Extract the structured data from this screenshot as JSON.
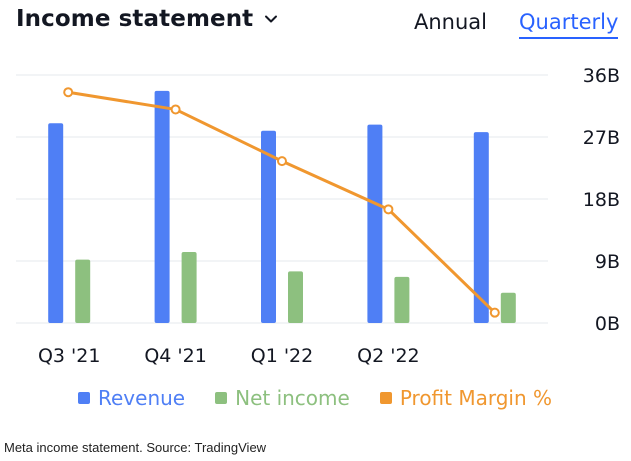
{
  "header": {
    "title": "Income statement",
    "tabs": {
      "annual": "Annual",
      "quarterly": "Quarterly"
    },
    "selected_tab": "Quarterly"
  },
  "colors": {
    "revenue": "#4f7ff5",
    "net_income": "#8dc07f",
    "profit_margin": "#f0972f",
    "active_tab": "#2962ff"
  },
  "chart_data": {
    "type": "bar",
    "title": "Income statement",
    "categories": [
      "Q3 '21",
      "Q4 '21",
      "Q1 '22",
      "Q2 '22",
      ""
    ],
    "series": [
      {
        "name": "Revenue",
        "type": "bar",
        "values": [
          29.0,
          33.7,
          27.9,
          28.8,
          27.7
        ]
      },
      {
        "name": "Net income",
        "type": "bar",
        "values": [
          9.2,
          10.3,
          7.5,
          6.7,
          4.4
        ]
      },
      {
        "name": "Profit Margin %",
        "type": "line",
        "values": [
          33.5,
          31.0,
          23.5,
          16.5,
          1.5
        ]
      }
    ],
    "y_ticks": [
      "36B",
      "27B",
      "18B",
      "9B",
      "0B"
    ],
    "ylim": [
      0,
      36
    ],
    "grid": true,
    "legend_position": "bottom"
  },
  "legend": {
    "revenue": "Revenue",
    "net_income": "Net income",
    "profit_margin": "Profit Margin %"
  },
  "caption": "Meta income statement. Source: TradingView"
}
